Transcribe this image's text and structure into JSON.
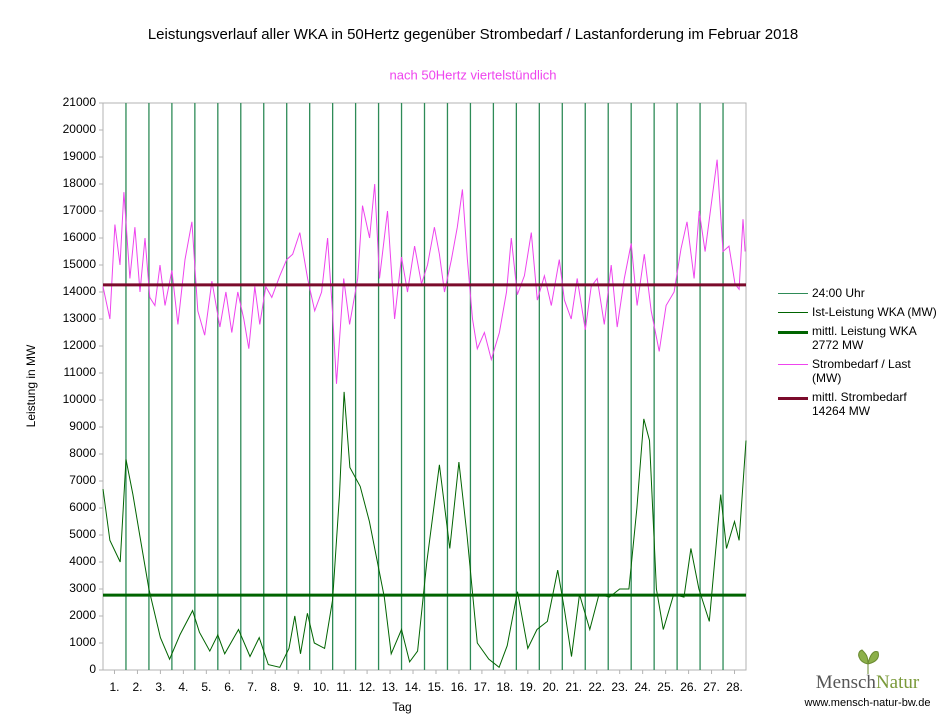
{
  "chart_data": {
    "type": "line",
    "title": "Leistungsverlauf aller WKA in 50Hertz gegenüber  Strombedarf / Lastanforderung im Februar 2018",
    "subtitle": "nach 50Hertz viertelstündlich",
    "xlabel": "Tag",
    "ylabel": "Leistung in MW",
    "xlim": [
      0,
      28
    ],
    "ylim": [
      0,
      21000
    ],
    "yticks": [
      0,
      1000,
      2000,
      3000,
      4000,
      5000,
      6000,
      7000,
      8000,
      9000,
      10000,
      11000,
      12000,
      13000,
      14000,
      15000,
      16000,
      17000,
      18000,
      19000,
      20000,
      21000
    ],
    "xticks": [
      {
        "value": 0.5,
        "label": "1."
      },
      {
        "value": 1.5,
        "label": "2."
      },
      {
        "value": 2.5,
        "label": "3."
      },
      {
        "value": 3.5,
        "label": "4."
      },
      {
        "value": 4.5,
        "label": "5."
      },
      {
        "value": 5.5,
        "label": "6."
      },
      {
        "value": 6.5,
        "label": "7."
      },
      {
        "value": 7.5,
        "label": "8."
      },
      {
        "value": 8.5,
        "label": "9."
      },
      {
        "value": 9.5,
        "label": "10."
      },
      {
        "value": 10.5,
        "label": "11."
      },
      {
        "value": 11.5,
        "label": "12."
      },
      {
        "value": 12.5,
        "label": "13."
      },
      {
        "value": 13.5,
        "label": "14."
      },
      {
        "value": 14.5,
        "label": "15."
      },
      {
        "value": 15.5,
        "label": "16."
      },
      {
        "value": 16.5,
        "label": "17."
      },
      {
        "value": 17.5,
        "label": "18."
      },
      {
        "value": 18.5,
        "label": "19."
      },
      {
        "value": 19.5,
        "label": "20."
      },
      {
        "value": 20.5,
        "label": "21."
      },
      {
        "value": 21.5,
        "label": "22."
      },
      {
        "value": 22.5,
        "label": "23."
      },
      {
        "value": 23.5,
        "label": "24."
      },
      {
        "value": 24.5,
        "label": "25."
      },
      {
        "value": 25.5,
        "label": "26."
      },
      {
        "value": 26.5,
        "label": "27."
      },
      {
        "value": 27.5,
        "label": "28."
      }
    ],
    "vlines": {
      "name": "24:00 Uhr",
      "color": "#2e8b57",
      "x": [
        1,
        2,
        3,
        4,
        5,
        6,
        7,
        8,
        9,
        10,
        11,
        12,
        13,
        14,
        15,
        16,
        17,
        18,
        19,
        20,
        21,
        22,
        23,
        24,
        25,
        26,
        27
      ]
    },
    "series": [
      {
        "name": "Ist-Leistung WKA (MW)",
        "color": "#006400",
        "x": [
          0,
          0.3,
          0.75,
          1.0,
          1.3,
          1.6,
          2.0,
          2.5,
          2.9,
          3.35,
          3.9,
          4.2,
          4.65,
          5.0,
          5.3,
          5.9,
          6.4,
          6.8,
          7.2,
          7.7,
          8.1,
          8.35,
          8.6,
          8.9,
          9.2,
          9.65,
          10.0,
          10.3,
          10.5,
          10.75,
          11.2,
          11.6,
          11.95,
          12.25,
          12.55,
          13.0,
          13.35,
          13.7,
          14.1,
          14.65,
          15.1,
          15.5,
          15.85,
          16.3,
          16.8,
          17.25,
          17.6,
          18.05,
          18.5,
          18.9,
          19.35,
          19.8,
          20.1,
          20.4,
          20.75,
          21.2,
          21.6,
          22.05,
          22.5,
          22.9,
          23.25,
          23.55,
          23.8,
          24.1,
          24.4,
          24.85,
          25.3,
          25.6,
          25.95,
          26.4,
          26.9,
          27.15,
          27.5,
          27.7,
          28.0
        ],
        "values": [
          6700,
          4800,
          4000,
          7800,
          6500,
          5000,
          3000,
          1200,
          400,
          1300,
          2200,
          1400,
          700,
          1300,
          600,
          1500,
          500,
          1200,
          200,
          100,
          800,
          2000,
          600,
          2100,
          1000,
          800,
          2600,
          6500,
          10300,
          7500,
          6800,
          5500,
          4000,
          2700,
          600,
          1500,
          300,
          700,
          4000,
          7600,
          4500,
          7700,
          5000,
          1000,
          400,
          100,
          900,
          2900,
          800,
          1500,
          1800,
          3700,
          2200,
          500,
          2800,
          1500,
          2800,
          2700,
          3000,
          3000,
          6000,
          9300,
          8500,
          3000,
          1500,
          2800,
          2700,
          4500,
          3000,
          1800,
          6500,
          4500,
          5500,
          4800,
          8500
        ]
      },
      {
        "name": "Strombedarf / Last (MW)",
        "color": "#ee44ee",
        "x": [
          0,
          0.3,
          0.52,
          0.74,
          0.91,
          1.17,
          1.39,
          1.61,
          1.83,
          2.04,
          2.26,
          2.48,
          2.7,
          3.0,
          3.26,
          3.57,
          3.87,
          4.13,
          4.43,
          4.74,
          5.09,
          5.35,
          5.61,
          5.87,
          6.13,
          6.35,
          6.61,
          6.83,
          7.09,
          7.35,
          7.7,
          8.0,
          8.26,
          8.57,
          8.91,
          9.22,
          9.52,
          9.78,
          10.0,
          10.17,
          10.48,
          10.74,
          11.09,
          11.3,
          11.61,
          11.83,
          12.04,
          12.39,
          12.7,
          13.0,
          13.26,
          13.57,
          13.87,
          14.13,
          14.43,
          14.65,
          14.87,
          15.17,
          15.43,
          15.65,
          15.87,
          16.09,
          16.3,
          16.61,
          16.91,
          17.26,
          17.57,
          17.78,
          18.04,
          18.35,
          18.65,
          18.91,
          19.22,
          19.52,
          19.87,
          20.09,
          20.39,
          20.65,
          21.0,
          21.26,
          21.52,
          21.83,
          22.13,
          22.39,
          22.7,
          23.0,
          23.26,
          23.57,
          23.87,
          24.22,
          24.52,
          24.87,
          25.17,
          25.43,
          25.74,
          25.96,
          26.22,
          26.48,
          26.74,
          27.0,
          27.26,
          27.52,
          27.7,
          27.87,
          27.96
        ],
        "values": [
          14200,
          13000,
          16500,
          15000,
          17700,
          14500,
          16400,
          14000,
          16000,
          13800,
          13500,
          15000,
          13500,
          14800,
          12800,
          15200,
          16600,
          13300,
          12400,
          14400,
          12700,
          14000,
          12500,
          14000,
          13000,
          11900,
          14200,
          12800,
          14200,
          13800,
          14600,
          15200,
          15400,
          16200,
          14500,
          13300,
          14000,
          16000,
          13200,
          10600,
          14500,
          12800,
          14500,
          17200,
          16000,
          18000,
          14500,
          17000,
          13000,
          15300,
          14000,
          15700,
          14300,
          15000,
          16400,
          15400,
          14000,
          15200,
          16400,
          17800,
          15200,
          13000,
          11900,
          12500,
          11500,
          12500,
          14000,
          16000,
          13900,
          14600,
          16200,
          13700,
          14600,
          13500,
          15200,
          13700,
          13000,
          14500,
          12600,
          14200,
          14500,
          12800,
          15000,
          12700,
          14500,
          15800,
          13500,
          15400,
          13300,
          11800,
          13500,
          14000,
          15600,
          16600,
          14500,
          17000,
          15500,
          17200,
          18900,
          15500,
          15700,
          14300,
          14100,
          16700,
          15500
        ]
      }
    ],
    "hlines": [
      {
        "name": "mittl. Leistung WKA 2772 MW",
        "color": "#006400",
        "value": 2772
      },
      {
        "name": "mittl. Strombedarf 14264 MW",
        "color": "#7b0b2b",
        "value": 14264
      }
    ]
  },
  "logo": {
    "brand_left": "Mensch",
    "brand_right": "Natur",
    "url": "www.mensch-natur-bw.de"
  }
}
